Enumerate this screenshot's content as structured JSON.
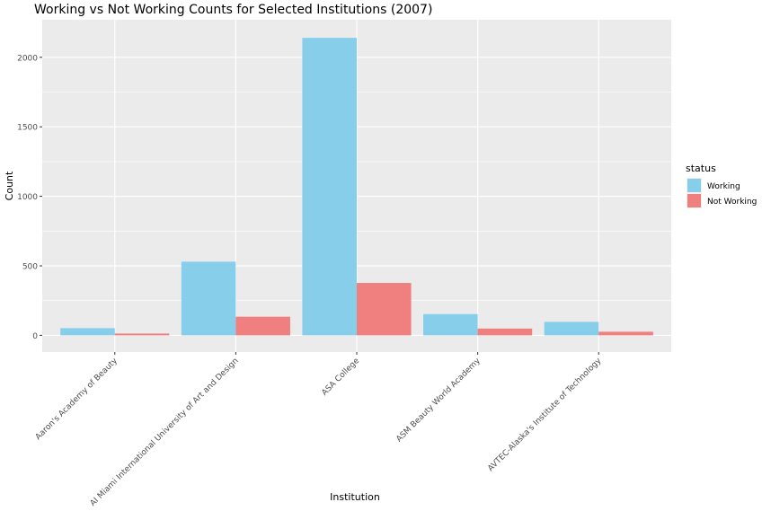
{
  "chart_data": {
    "type": "bar",
    "title": "Working vs Not Working Counts for Selected Institutions (2007)",
    "xlabel": "Institution",
    "ylabel": "Count",
    "categories": [
      "Aaron's Academy of Beauty",
      "AI Miami International University of Art and Design",
      "ASA College",
      "ASM Beauty World Academy",
      "AVTEC-Alaska's Institute of Technology"
    ],
    "series": [
      {
        "name": "Working",
        "color": "#87CEEB",
        "values": [
          52,
          530,
          2140,
          153,
          97
        ]
      },
      {
        "name": "Not Working",
        "color": "#F08080",
        "values": [
          13,
          134,
          377,
          49,
          26
        ]
      }
    ],
    "ylim": [
      -120,
      2270
    ],
    "yticks": [
      0,
      500,
      1000,
      1500,
      2000
    ],
    "grid": true,
    "legend": {
      "title": "status",
      "placement": "right"
    },
    "panel_background": "#EBEBEB"
  }
}
